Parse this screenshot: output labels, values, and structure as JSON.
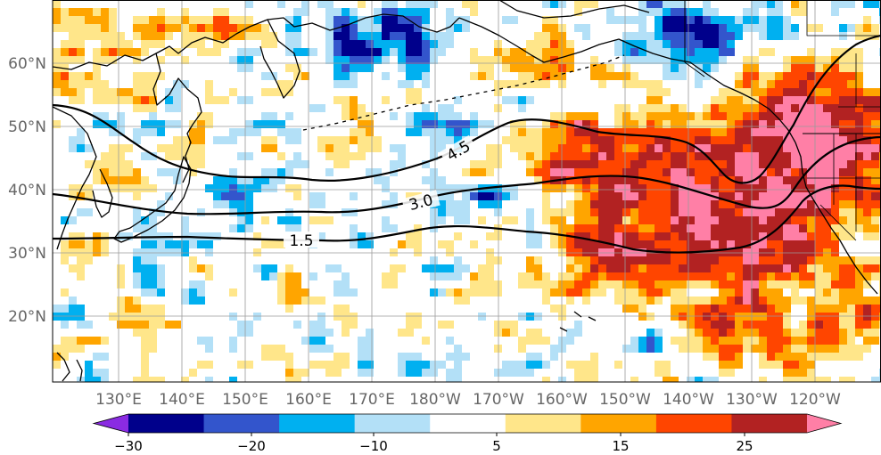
{
  "map": {
    "lat_labels": [
      "60°N",
      "50°N",
      "40°N",
      "30°N",
      "20°N"
    ],
    "lon_labels": [
      "130°E",
      "140°E",
      "150°E",
      "160°E",
      "170°E",
      "180°W",
      "170°W",
      "160°W",
      "150°W",
      "140°W",
      "130°W",
      "120°W"
    ],
    "contours": [
      {
        "label": "4.5",
        "color": "#000000"
      },
      {
        "label": "3.0",
        "color": "#000000"
      },
      {
        "label": "1.5",
        "color": "#000000"
      }
    ]
  },
  "colorbar": {
    "ticks": [
      "−30",
      "−20",
      "−10",
      "5",
      "15",
      "25"
    ],
    "colors": [
      "#8a2be2",
      "#00008b",
      "#3355cc",
      "#00b0f0",
      "#b3e0f7",
      "#ffffff",
      "#ffe68a",
      "#ffa500",
      "#ff4500",
      "#b22222",
      "#ff7fa6"
    ]
  }
}
